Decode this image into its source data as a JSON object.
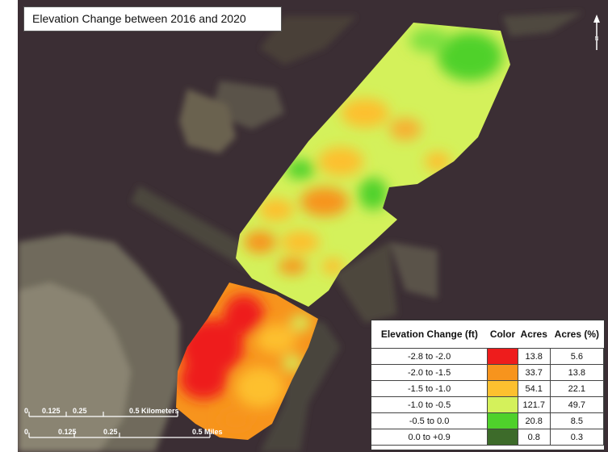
{
  "title": "Elevation Change between 2016 and 2020",
  "north_symbol": "N",
  "legend": {
    "headers": [
      "Elevation Change (ft)",
      "Color",
      "Acres",
      "Acres (%)"
    ],
    "rows": [
      {
        "range": "-2.8 to -2.0",
        "color": "#ee1c1c",
        "acres": "13.8",
        "percent": "5.6"
      },
      {
        "range": "-2.0 to -1.5",
        "color": "#f7941d",
        "acres": "33.7",
        "percent": "13.8"
      },
      {
        "range": "-1.5 to -1.0",
        "color": "#fdc02f",
        "acres": "54.1",
        "percent": "22.1"
      },
      {
        "range": "-1.0 to -0.5",
        "color": "#d4f15b",
        "acres": "121.7",
        "percent": "49.7"
      },
      {
        "range": "-0.5 to 0.0",
        "color": "#4fd12b",
        "acres": "20.8",
        "percent": "8.5"
      },
      {
        "range": "0.0 to +0.9",
        "color": "#3d6b2a",
        "acres": "0.8",
        "percent": "0.3"
      }
    ]
  },
  "scale_km": {
    "labels": [
      "0",
      "0.125",
      "0.25",
      "0.5 Kilometers"
    ]
  },
  "scale_mi": {
    "labels": [
      "0",
      "0.125",
      "0.25",
      "0.5 Miles"
    ]
  }
}
